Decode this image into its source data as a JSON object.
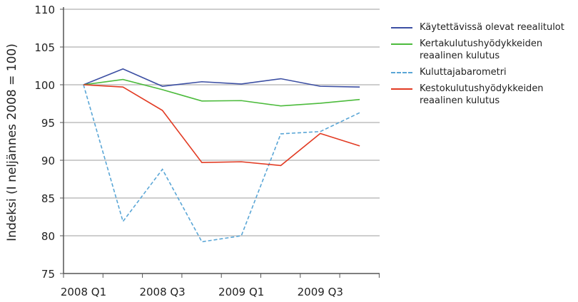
{
  "chart_data": {
    "type": "line",
    "title": "",
    "xlabel": "",
    "ylabel": "Indeksi (I neljännes 2008 = 100)",
    "ylim": [
      75,
      110
    ],
    "yticks": [
      75,
      80,
      85,
      90,
      95,
      100,
      105,
      110
    ],
    "categories": [
      "2008 Q1",
      "2008 Q2",
      "2008 Q3",
      "2008 Q4",
      "2009 Q1",
      "2009 Q2",
      "2009 Q3",
      "2009 Q4"
    ],
    "xtick_labels": [
      "2008 Q1",
      "2008 Q3",
      "2009 Q1",
      "2009 Q3"
    ],
    "grid": "horizontal",
    "legend": "right",
    "series": [
      {
        "name": "Käytettävissä olevat reealitulot",
        "color": "#3c4fa3",
        "dash": false,
        "values": [
          100,
          102.1,
          99.8,
          100.4,
          100.1,
          100.8,
          99.8,
          99.7
        ]
      },
      {
        "name": "Kertakulutushyödykkeiden reaalinen kulutus",
        "color": "#4cbb3c",
        "dash": false,
        "values": [
          100,
          100.7,
          99.35,
          97.85,
          97.9,
          97.2,
          97.55,
          98.05
        ]
      },
      {
        "name": "Kuluttajabarometri",
        "color": "#5aa6d6",
        "dash": true,
        "values": [
          100,
          81.9,
          88.8,
          79.2,
          80.0,
          93.5,
          93.8,
          96.3
        ]
      },
      {
        "name": "Kestokulutushyödykkeiden reaalinen kulutus",
        "color": "#e23a22",
        "dash": false,
        "values": [
          100,
          99.7,
          96.6,
          89.7,
          89.8,
          89.3,
          93.55,
          91.9
        ]
      }
    ]
  }
}
